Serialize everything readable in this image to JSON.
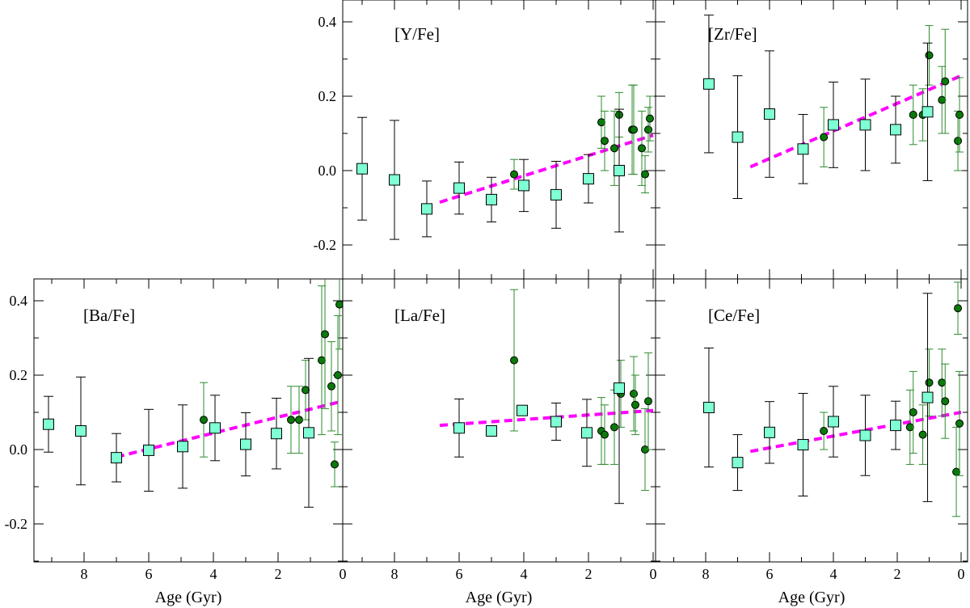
{
  "colors": {
    "square_fill": "#7fffd4",
    "circle_fill": "#0a7a0a",
    "square_err": "#000000",
    "circle_err": "#2e8b2e",
    "trend": "#ff00ff"
  },
  "chart_data": {
    "type": "scatter",
    "title": "",
    "xlabel": "Age (Gyr)",
    "xticklabels": [
      "8",
      "6",
      "4",
      "2",
      "0"
    ],
    "yticklabels": [
      "0.4",
      "0.2",
      "0.0",
      "-0.2"
    ],
    "xlim": [
      9.5,
      -0.1
    ],
    "ylim": [
      -0.28,
      0.45
    ],
    "panels": [
      {
        "id": "Y",
        "label": "[Y/Fe]",
        "squares": [
          [
            9.0,
            0.005,
            0.138
          ],
          [
            8.0,
            -0.025,
            0.16
          ],
          [
            7.0,
            -0.103,
            0.075
          ],
          [
            6.0,
            -0.047,
            0.07
          ],
          [
            5.0,
            -0.078,
            0.06
          ],
          [
            4.0,
            -0.04,
            0.07
          ],
          [
            3.0,
            -0.065,
            0.09
          ],
          [
            2.0,
            -0.022,
            0.065
          ],
          [
            1.05,
            0.0,
            0.165
          ]
        ],
        "circles": [
          [
            4.3,
            -0.01,
            0.04
          ],
          [
            1.6,
            0.13,
            0.07
          ],
          [
            1.5,
            0.08,
            0.08
          ],
          [
            1.2,
            0.06,
            0.1
          ],
          [
            1.05,
            0.15,
            0.06
          ],
          [
            0.65,
            0.11,
            0.12
          ],
          [
            0.6,
            0.11,
            0.12
          ],
          [
            0.35,
            0.06,
            0.1
          ],
          [
            0.25,
            -0.01,
            0.05
          ],
          [
            0.15,
            0.11,
            0.06
          ],
          [
            0.1,
            0.14,
            0.06
          ]
        ],
        "trend": [
          6.6,
          -0.085,
          0.0,
          0.095
        ]
      },
      {
        "id": "Zr",
        "label": "[Zr/Fe]",
        "squares": [
          [
            7.9,
            0.233,
            0.185
          ],
          [
            7.0,
            0.09,
            0.165
          ],
          [
            6.0,
            0.152,
            0.17
          ],
          [
            4.95,
            0.058,
            0.093
          ],
          [
            4.0,
            0.123,
            0.115
          ],
          [
            3.0,
            0.123,
            0.123
          ],
          [
            2.05,
            0.11,
            0.09
          ],
          [
            1.05,
            0.158,
            0.185
          ]
        ],
        "circles": [
          [
            4.3,
            0.09,
            0.08
          ],
          [
            1.5,
            0.15,
            0.08
          ],
          [
            1.2,
            0.15,
            0.07
          ],
          [
            1.0,
            0.31,
            0.08
          ],
          [
            0.6,
            0.19,
            0.09
          ],
          [
            0.5,
            0.24,
            0.14
          ],
          [
            0.1,
            0.08,
            0.08
          ],
          [
            0.05,
            0.15,
            0.1
          ]
        ],
        "trend": [
          6.6,
          0.01,
          0.0,
          0.255
        ]
      },
      {
        "id": "Ba",
        "label": "[Ba/Fe]",
        "squares": [
          [
            9.1,
            0.068,
            0.075
          ],
          [
            8.1,
            0.05,
            0.145
          ],
          [
            7.0,
            -0.022,
            0.065
          ],
          [
            6.0,
            -0.002,
            0.11
          ],
          [
            4.95,
            0.008,
            0.112
          ],
          [
            3.95,
            0.058,
            0.088
          ],
          [
            3.0,
            0.014,
            0.085
          ],
          [
            2.05,
            0.043,
            0.095
          ],
          [
            1.05,
            0.045,
            0.2
          ]
        ],
        "circles": [
          [
            4.3,
            0.08,
            0.1
          ],
          [
            1.6,
            0.08,
            0.09
          ],
          [
            1.35,
            0.08,
            0.09
          ],
          [
            1.15,
            0.16,
            0.08
          ],
          [
            0.65,
            0.24,
            0.2
          ],
          [
            0.55,
            0.31,
            0.2
          ],
          [
            0.35,
            0.17,
            0.12
          ],
          [
            0.25,
            -0.04,
            0.06
          ],
          [
            0.15,
            0.2,
            0.16
          ],
          [
            0.1,
            0.39,
            0.12
          ]
        ],
        "trend": [
          7.0,
          -0.02,
          0.0,
          0.13
        ]
      },
      {
        "id": "La",
        "label": "[La/Fe]",
        "squares": [
          [
            6.0,
            0.058,
            0.078
          ],
          [
            5.0,
            0.05,
            0.008
          ],
          [
            4.05,
            0.105,
            0.01
          ],
          [
            3.0,
            0.075,
            0.05
          ],
          [
            2.05,
            0.045,
            0.09
          ],
          [
            1.05,
            0.165,
            0.31
          ]
        ],
        "circles": [
          [
            4.3,
            0.24,
            0.19
          ],
          [
            1.6,
            0.05,
            0.09
          ],
          [
            1.5,
            0.04,
            0.08
          ],
          [
            1.2,
            0.06,
            0.1
          ],
          [
            1.0,
            0.15,
            0.09
          ],
          [
            0.6,
            0.15,
            0.1
          ],
          [
            0.55,
            0.12,
            0.08
          ],
          [
            0.25,
            0.0,
            0.11
          ],
          [
            0.15,
            0.13,
            0.13
          ]
        ],
        "trend": [
          6.6,
          0.065,
          0.0,
          0.105
        ]
      },
      {
        "id": "Ce",
        "label": "[Ce/Fe]",
        "squares": [
          [
            7.9,
            0.113,
            0.16
          ],
          [
            7.0,
            -0.035,
            0.075
          ],
          [
            6.0,
            0.046,
            0.083
          ],
          [
            4.95,
            0.013,
            0.138
          ],
          [
            4.0,
            0.075,
            0.095
          ],
          [
            3.0,
            0.038,
            0.108
          ],
          [
            2.05,
            0.065,
            0.065
          ],
          [
            1.05,
            0.14,
            0.28
          ]
        ],
        "circles": [
          [
            4.3,
            0.05,
            0.05
          ],
          [
            1.6,
            0.06,
            0.1
          ],
          [
            1.5,
            0.1,
            0.11
          ],
          [
            1.2,
            0.04,
            0.08
          ],
          [
            1.0,
            0.18,
            0.09
          ],
          [
            0.6,
            0.18,
            0.09
          ],
          [
            0.5,
            0.13,
            0.1
          ],
          [
            0.15,
            -0.06,
            0.12
          ],
          [
            0.1,
            0.38,
            0.07
          ],
          [
            0.05,
            0.07,
            0.14
          ]
        ],
        "trend": [
          6.6,
          -0.005,
          0.0,
          0.1
        ]
      }
    ]
  }
}
